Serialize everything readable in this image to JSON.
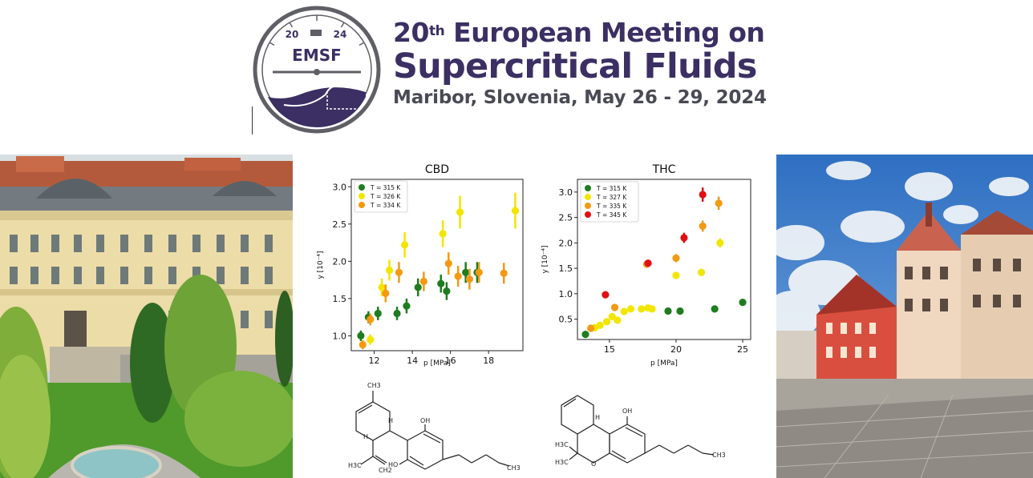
{
  "header": {
    "logo": {
      "year_left": "20",
      "year_right": "24",
      "acronym": "EMSF"
    },
    "title_prefix": "20",
    "title_suffix": "th",
    "title_rest": " European Meeting on",
    "title_line2": "Supercritical Fluids",
    "subtitle": "Maribor, Slovenia, May 26 - 29, 2024",
    "colors": {
      "brand": "#3b2f63",
      "subtitle": "#4a4a55"
    }
  },
  "photos": {
    "left": {
      "subject": "university-building-photo"
    },
    "right": {
      "subject": "town-square-photo"
    }
  },
  "chart_data": [
    {
      "type": "scatter",
      "title": "CBD",
      "xlabel": "p [MPa]",
      "ylabel": "y [10⁻⁴]",
      "xlim": [
        10.8,
        19.8
      ],
      "ylim": [
        0.8,
        3.1
      ],
      "xticks": [
        12,
        14,
        16,
        18
      ],
      "yticks": [
        1.0,
        1.5,
        2.0,
        2.5,
        3.0
      ],
      "ytick_labels": [
        "1.0",
        "1.5",
        "2.0",
        "2.5",
        "3.0"
      ],
      "legend_position": "top-left",
      "series": [
        {
          "name": "T = 315 K",
          "color": "#1f7d1f",
          "points": [
            {
              "x": 11.3,
              "y": 1.0,
              "err": 0.07
            },
            {
              "x": 11.7,
              "y": 1.25,
              "err": 0.08
            },
            {
              "x": 12.2,
              "y": 1.3,
              "err": 0.09
            },
            {
              "x": 13.2,
              "y": 1.3,
              "err": 0.09
            },
            {
              "x": 13.7,
              "y": 1.4,
              "err": 0.1
            },
            {
              "x": 14.3,
              "y": 1.65,
              "err": 0.12
            },
            {
              "x": 15.5,
              "y": 1.7,
              "err": 0.12
            },
            {
              "x": 15.8,
              "y": 1.6,
              "err": 0.12
            },
            {
              "x": 16.8,
              "y": 1.85,
              "err": 0.14
            },
            {
              "x": 17.4,
              "y": 1.85,
              "err": 0.14
            }
          ]
        },
        {
          "name": "T = 326 K",
          "color": "#f2e600",
          "points": [
            {
              "x": 11.8,
              "y": 0.95,
              "err": 0.07
            },
            {
              "x": 12.4,
              "y": 1.65,
              "err": 0.12
            },
            {
              "x": 12.8,
              "y": 1.88,
              "err": 0.14
            },
            {
              "x": 13.6,
              "y": 2.22,
              "err": 0.17
            },
            {
              "x": 15.6,
              "y": 2.37,
              "err": 0.18
            },
            {
              "x": 16.5,
              "y": 2.66,
              "err": 0.22
            },
            {
              "x": 19.4,
              "y": 2.68,
              "err": 0.24
            }
          ]
        },
        {
          "name": "T = 334 K",
          "color": "#f39a12",
          "points": [
            {
              "x": 11.4,
              "y": 0.88,
              "err": 0.06
            },
            {
              "x": 11.8,
              "y": 1.22,
              "err": 0.08
            },
            {
              "x": 12.6,
              "y": 1.57,
              "err": 0.12
            },
            {
              "x": 13.3,
              "y": 1.85,
              "err": 0.14
            },
            {
              "x": 14.6,
              "y": 1.73,
              "err": 0.13
            },
            {
              "x": 15.9,
              "y": 1.97,
              "err": 0.15
            },
            {
              "x": 16.4,
              "y": 1.8,
              "err": 0.14
            },
            {
              "x": 17.0,
              "y": 1.76,
              "err": 0.14
            },
            {
              "x": 17.5,
              "y": 1.85,
              "err": 0.14
            },
            {
              "x": 18.8,
              "y": 1.84,
              "err": 0.14
            }
          ]
        }
      ]
    },
    {
      "type": "scatter",
      "title": "THC",
      "xlabel": "p [MPa]",
      "ylabel": "y [10⁻⁴]",
      "xlim": [
        12.6,
        25.6
      ],
      "ylim": [
        0.1,
        3.25
      ],
      "xticks": [
        15,
        20,
        25
      ],
      "yticks": [
        0.5,
        1.0,
        1.5,
        2.0,
        2.5,
        3.0
      ],
      "ytick_labels": [
        "0.5",
        "1.0",
        "1.5",
        "2.0",
        "2.5",
        "3.0"
      ],
      "legend_position": "top-left",
      "series": [
        {
          "name": "T = 315 K",
          "color": "#1f7d1f",
          "points": [
            {
              "x": 13.2,
              "y": 0.2,
              "err": 0.02
            },
            {
              "x": 19.4,
              "y": 0.66,
              "err": 0.03
            },
            {
              "x": 20.3,
              "y": 0.66,
              "err": 0.03
            },
            {
              "x": 22.9,
              "y": 0.7,
              "err": 0.03
            },
            {
              "x": 25.0,
              "y": 0.83,
              "err": 0.04
            }
          ]
        },
        {
          "name": "T = 327 K",
          "color": "#f2e600",
          "points": [
            {
              "x": 13.9,
              "y": 0.33,
              "err": 0.02
            },
            {
              "x": 14.3,
              "y": 0.38,
              "err": 0.02
            },
            {
              "x": 14.8,
              "y": 0.45,
              "err": 0.03
            },
            {
              "x": 15.2,
              "y": 0.55,
              "err": 0.03
            },
            {
              "x": 15.6,
              "y": 0.48,
              "err": 0.03
            },
            {
              "x": 16.1,
              "y": 0.65,
              "err": 0.03
            },
            {
              "x": 16.6,
              "y": 0.7,
              "err": 0.03
            },
            {
              "x": 17.4,
              "y": 0.7,
              "err": 0.03
            },
            {
              "x": 17.9,
              "y": 0.72,
              "err": 0.03
            },
            {
              "x": 18.2,
              "y": 0.7,
              "err": 0.03
            },
            {
              "x": 20.0,
              "y": 1.36,
              "err": 0.06
            },
            {
              "x": 21.9,
              "y": 1.42,
              "err": 0.07
            },
            {
              "x": 23.3,
              "y": 2.0,
              "err": 0.09
            }
          ]
        },
        {
          "name": "T = 335 K",
          "color": "#f39a12",
          "points": [
            {
              "x": 13.6,
              "y": 0.32,
              "err": 0.02
            },
            {
              "x": 15.4,
              "y": 0.73,
              "err": 0.03
            },
            {
              "x": 17.8,
              "y": 1.58,
              "err": 0.07
            },
            {
              "x": 20.0,
              "y": 1.7,
              "err": 0.08
            },
            {
              "x": 22.0,
              "y": 2.33,
              "err": 0.11
            },
            {
              "x": 23.2,
              "y": 2.78,
              "err": 0.13
            }
          ]
        },
        {
          "name": "T = 345 K",
          "color": "#e01010",
          "points": [
            {
              "x": 14.7,
              "y": 0.98,
              "err": 0.04
            },
            {
              "x": 17.9,
              "y": 1.6,
              "err": 0.07
            },
            {
              "x": 20.6,
              "y": 2.1,
              "err": 0.1
            },
            {
              "x": 22.0,
              "y": 2.95,
              "err": 0.14
            }
          ]
        }
      ]
    }
  ],
  "molecules": {
    "cbd": {
      "labels": [
        "CH3",
        "H",
        "H",
        "OH",
        "HO",
        "H3C",
        "CH2",
        "CH3"
      ]
    },
    "thc": {
      "labels": [
        "H",
        "OH",
        "H3C",
        "H3C",
        "O",
        "CH3"
      ]
    }
  }
}
